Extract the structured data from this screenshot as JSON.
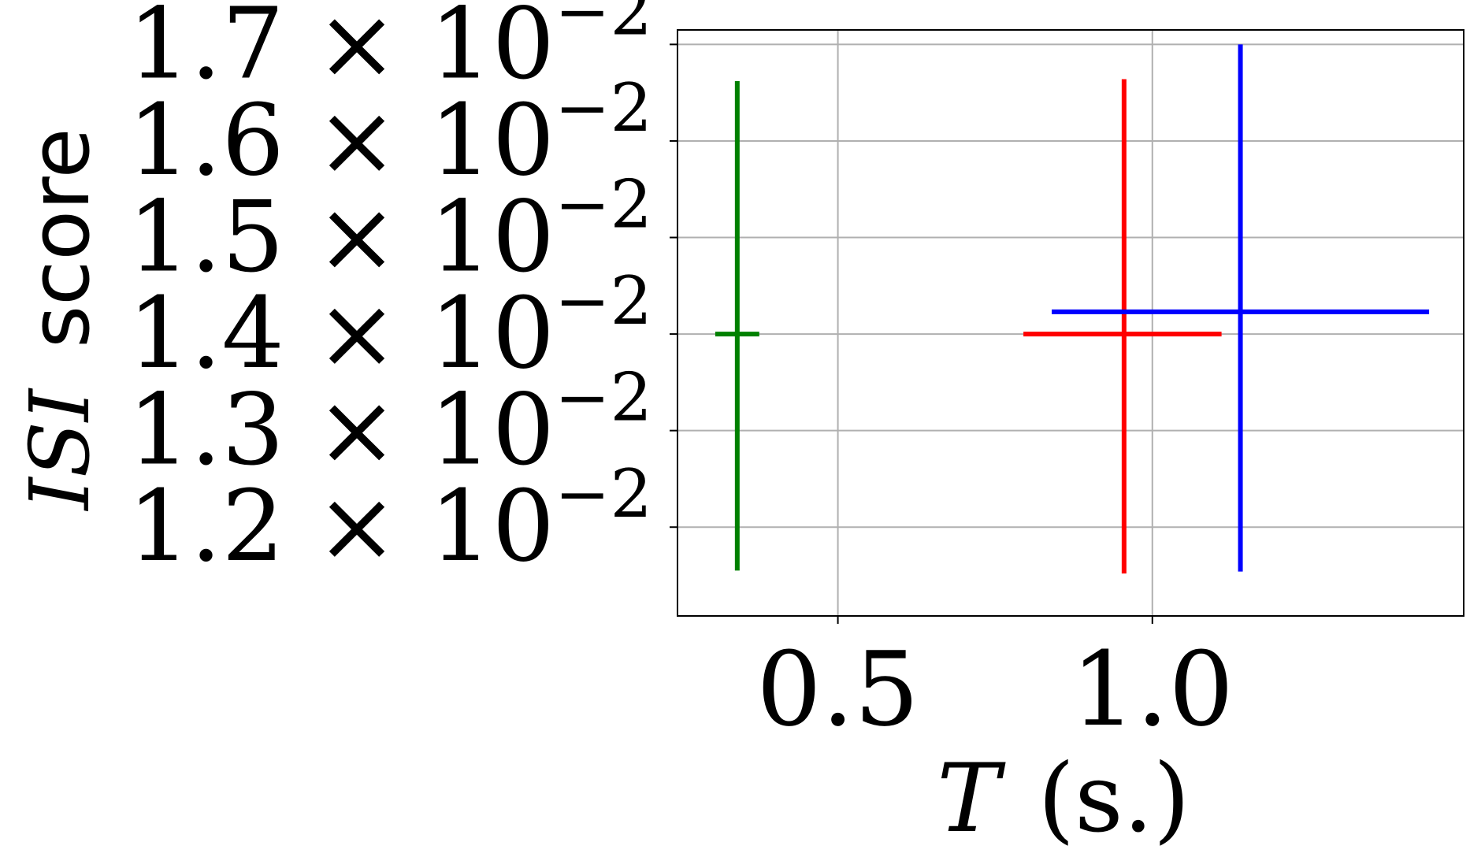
{
  "chart_data": {
    "type": "scatter",
    "title": "",
    "xlabel": {
      "symbol": "T",
      "unit": "(s.)"
    },
    "ylabel": {
      "symbol": "ISI",
      "word": "score"
    },
    "xlim": [
      0.245,
      1.495
    ],
    "ylim": [
      0.01108,
      0.01715
    ],
    "grid": true,
    "legend": "none",
    "x_ticks": [
      {
        "value": 0.5,
        "label": "0.5"
      },
      {
        "value": 1.0,
        "label": "1.0"
      }
    ],
    "y_ticks": [
      {
        "value": 0.012,
        "mantissa": "1.2",
        "base": "× 10",
        "exponent": "−2"
      },
      {
        "value": 0.013,
        "mantissa": "1.3",
        "base": "× 10",
        "exponent": "−2"
      },
      {
        "value": 0.014,
        "mantissa": "1.4",
        "base": "× 10",
        "exponent": "−2"
      },
      {
        "value": 0.015,
        "mantissa": "1.5",
        "base": "× 10",
        "exponent": "−2"
      },
      {
        "value": 0.016,
        "mantissa": "1.6",
        "base": "× 10",
        "exponent": "−2"
      },
      {
        "value": 0.017,
        "mantissa": "1.7",
        "base": "× 10",
        "exponent": "−2"
      }
    ],
    "series": [
      {
        "color": "#008000",
        "x": 0.34,
        "y": 0.014,
        "xerr": [
          0.305,
          0.375
        ],
        "yerr": [
          0.01155,
          0.01662
        ]
      },
      {
        "color": "#ff0000",
        "x": 0.955,
        "y": 0.014,
        "xerr": [
          0.795,
          1.11
        ],
        "yerr": [
          0.01152,
          0.01664
        ]
      },
      {
        "color": "#0000ff",
        "x": 1.14,
        "y": 0.01423,
        "xerr": [
          0.84,
          1.44
        ],
        "yerr": [
          0.01154,
          0.017
        ]
      }
    ]
  }
}
